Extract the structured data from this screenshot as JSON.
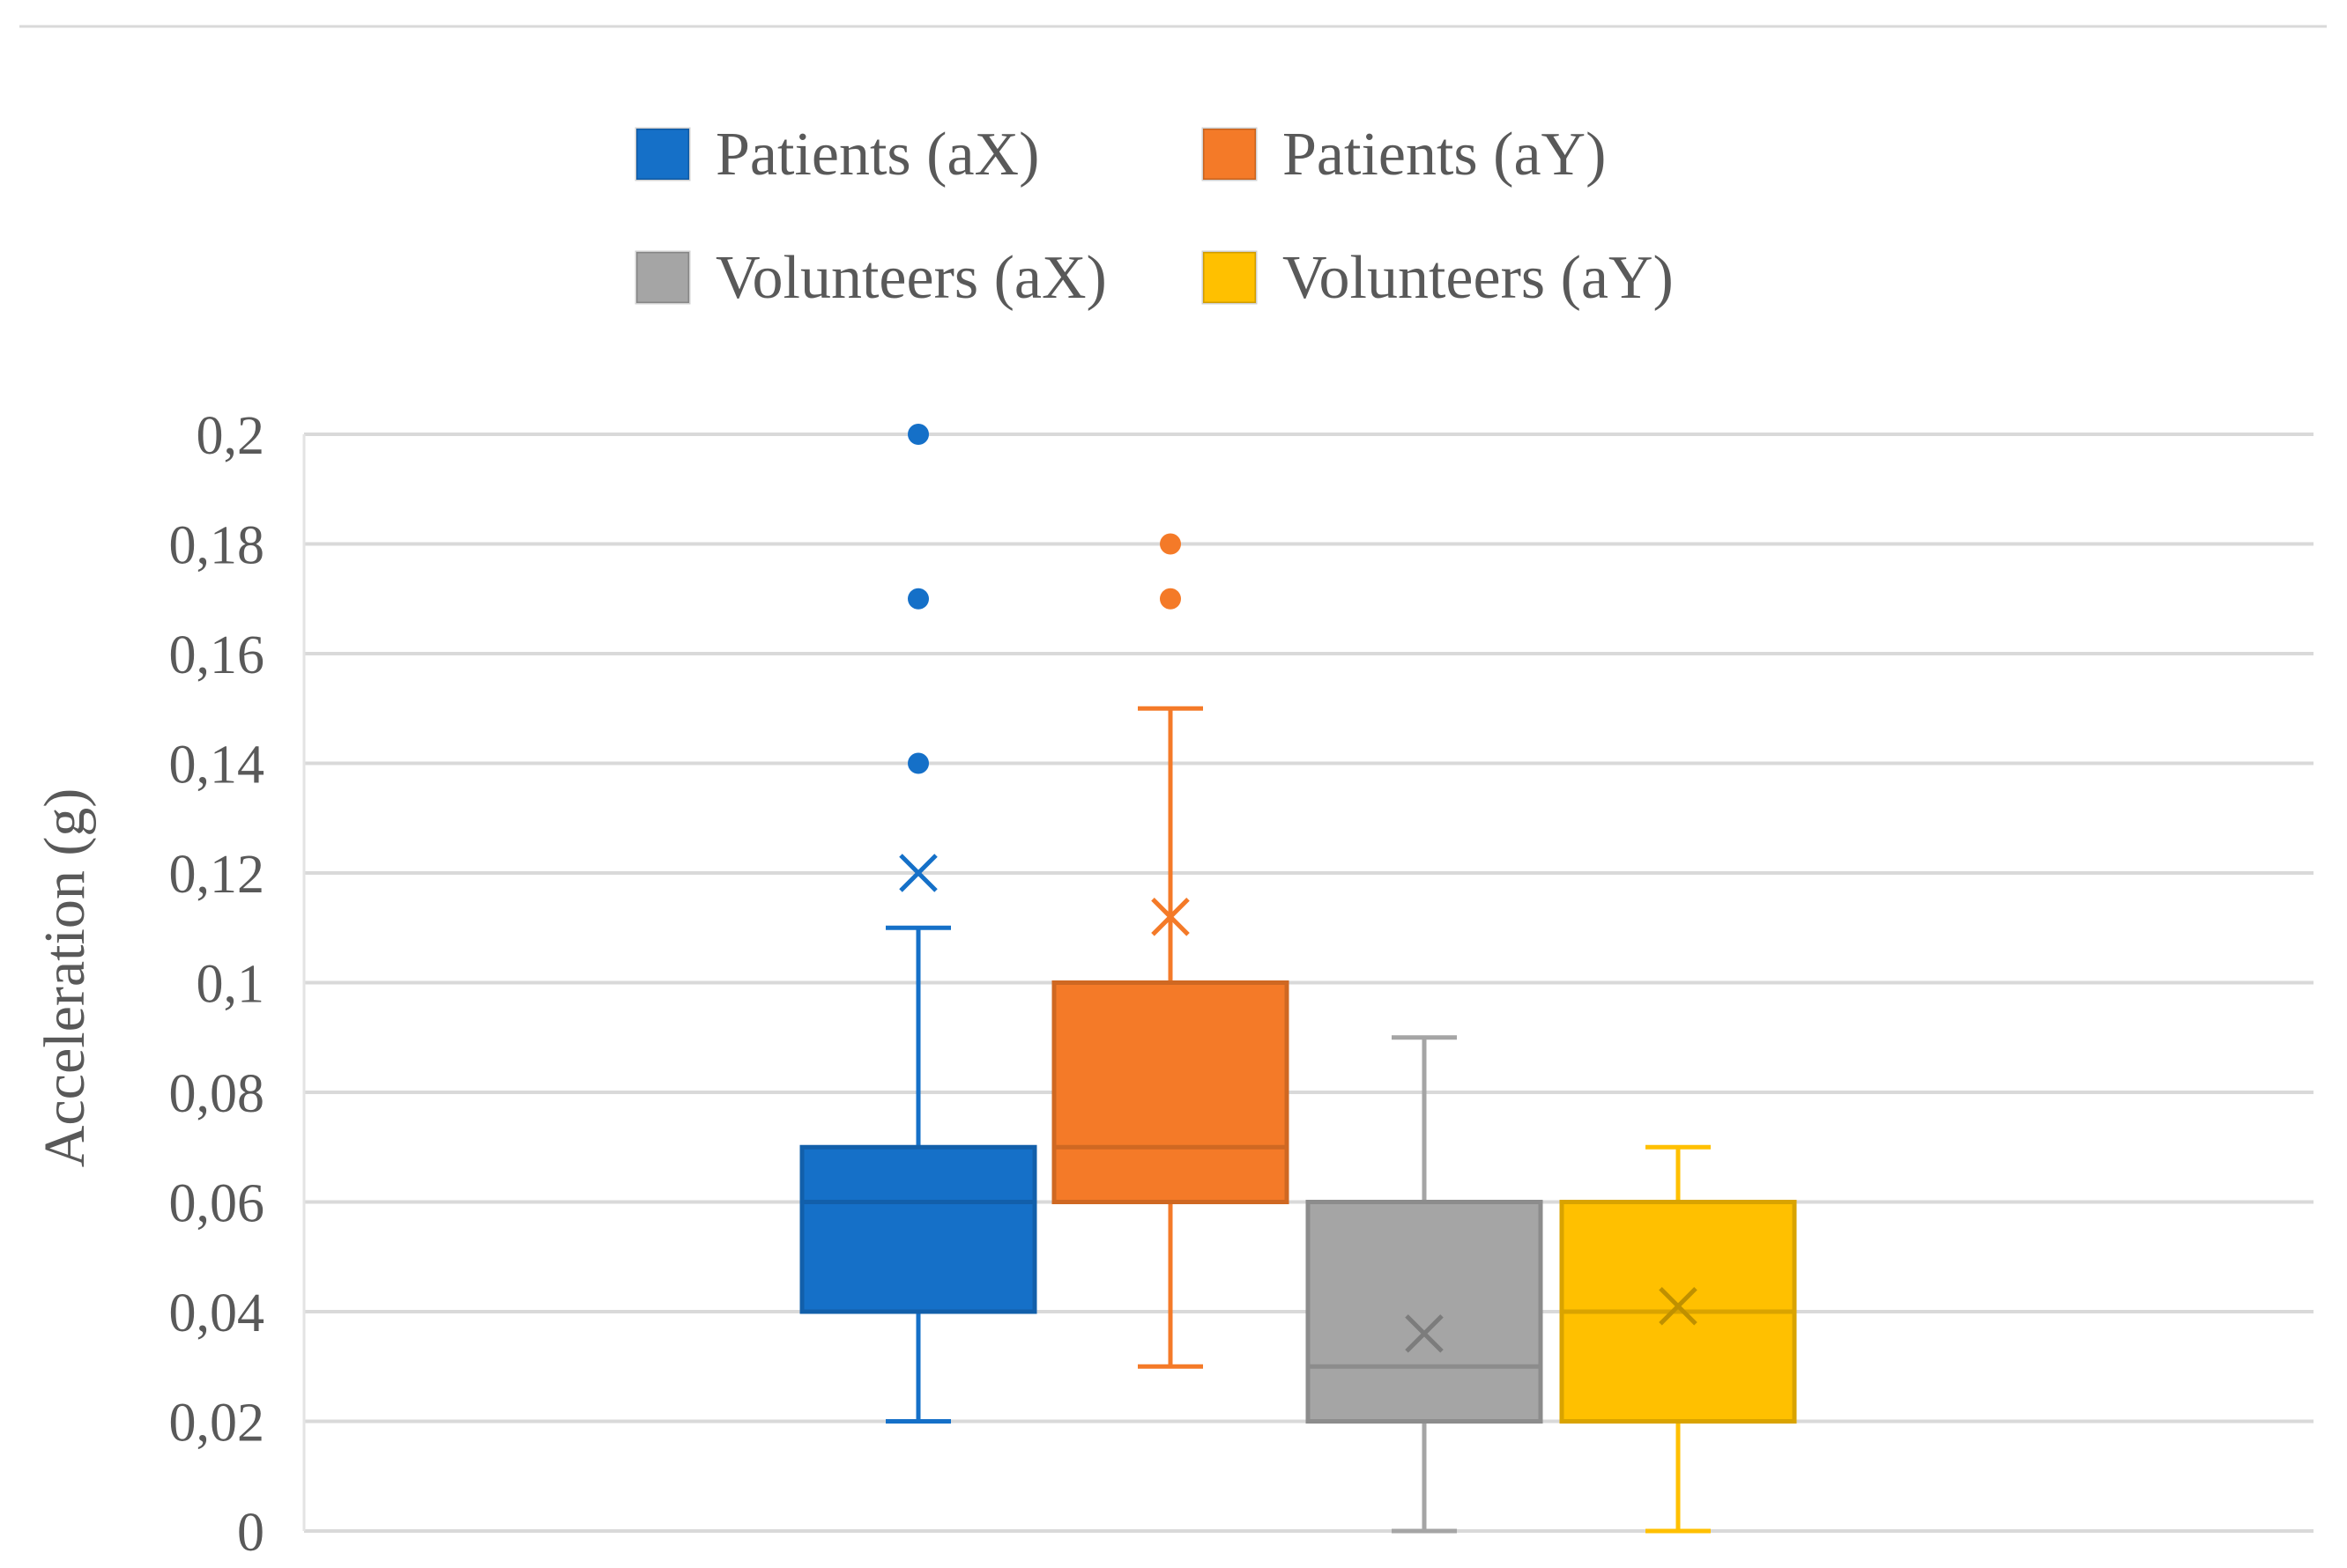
{
  "chart_data": {
    "type": "box",
    "ylabel": "Acceleration (g)",
    "ylim": [
      0,
      0.2
    ],
    "yticks": [
      "0",
      "0,02",
      "0,04",
      "0,06",
      "0,08",
      "0,1",
      "0,12",
      "0,14",
      "0,16",
      "0,18",
      "0,2"
    ],
    "grid": true,
    "legend_position": "top",
    "series": [
      {
        "name": "Patients (aX)",
        "color": "#1570c8",
        "min": 0.02,
        "q1": 0.04,
        "median": 0.06,
        "q3": 0.07,
        "max": 0.11,
        "mean": 0.12,
        "outliers": [
          0.14,
          0.17,
          0.2
        ]
      },
      {
        "name": "Patients (aY)",
        "color": "#f47a28",
        "min": 0.03,
        "q1": 0.06,
        "median": 0.07,
        "q3": 0.1,
        "max": 0.15,
        "mean": 0.112,
        "outliers": [
          0.17,
          0.18
        ]
      },
      {
        "name": "Volunteers (aX)",
        "color": "#a5a5a5",
        "min": 0,
        "q1": 0.02,
        "median": 0.03,
        "q3": 0.06,
        "max": 0.09,
        "mean": 0.036,
        "outliers": []
      },
      {
        "name": "Volunteers (aY)",
        "color": "#ffc000",
        "min": 0,
        "q1": 0.02,
        "median": 0.04,
        "q3": 0.06,
        "max": 0.07,
        "mean": 0.041,
        "outliers": []
      }
    ]
  }
}
